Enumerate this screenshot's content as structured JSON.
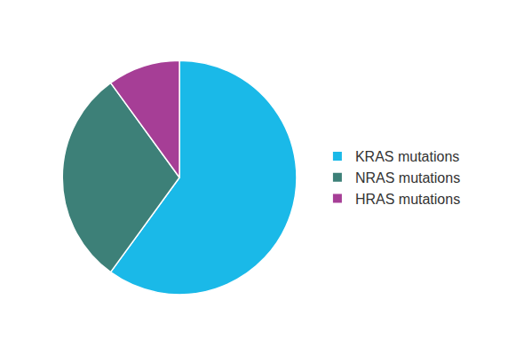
{
  "chart_data": {
    "type": "pie",
    "categories": [
      "KRAS mutations",
      "NRAS mutations",
      "HRAS mutations"
    ],
    "values": [
      60,
      30,
      10
    ],
    "colors": [
      "#1ab9e8",
      "#3d8078",
      "#a63e96"
    ],
    "legend": "right"
  }
}
